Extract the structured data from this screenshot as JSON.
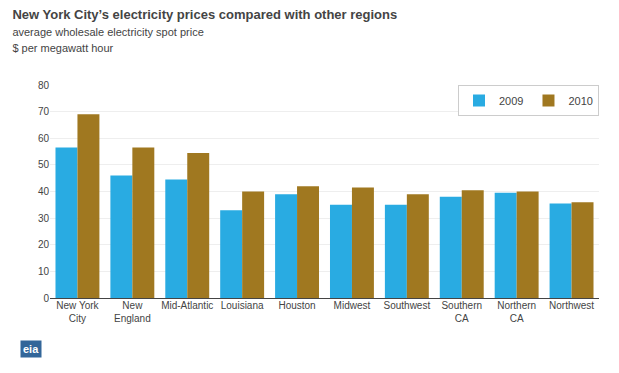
{
  "chart_data": {
    "type": "bar",
    "title": "New York City’s electricity prices compared with other regions",
    "subtitle": [
      "average wholesale electricity spot price",
      "$ per megawatt hour"
    ],
    "categories": [
      "New York\nCity",
      "New\nEngland",
      "Mid-Atlantic",
      "Louisiana",
      "Houston",
      "Midwest",
      "Southwest",
      "Southern\nCA",
      "Northern\nCA",
      "Northwest"
    ],
    "series": [
      {
        "name": "2009",
        "color": "#29ABE2",
        "values": [
          56.5,
          46.0,
          44.5,
          33.0,
          39.0,
          35.0,
          35.0,
          38.0,
          39.5,
          35.5
        ]
      },
      {
        "name": "2010",
        "color": "#A07820",
        "values": [
          69.0,
          56.5,
          54.5,
          40.0,
          42.0,
          41.5,
          39.0,
          40.5,
          40.0,
          36.0
        ]
      }
    ],
    "ylim": [
      0,
      80
    ],
    "yticks": [
      0,
      10,
      20,
      30,
      40,
      50,
      60,
      70,
      80
    ],
    "grid": true,
    "legend": "upper right",
    "annotations": [
      "eia"
    ]
  }
}
